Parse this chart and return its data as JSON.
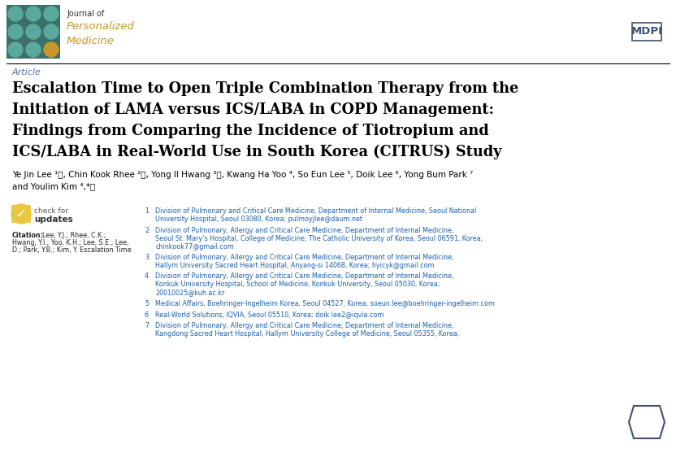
{
  "bg_color": "#ffffff",
  "header_bar_color": "#3a7068",
  "journal_name_line1": "Journal of",
  "journal_name_line2": "Personalized",
  "journal_name_line3": "Medicine",
  "journal_text_color": "#c8962a",
  "article_label": "Article",
  "title_line1": "Escalation Time to Open Triple Combination Therapy from the",
  "title_line2": "Initiation of LAMA versus ICS/LABA in COPD Management:",
  "title_line3": "Findings from Comparing the Incidence of Tiotropium and",
  "title_line4": "ICS/LABA in Real-World Use in South Korea (CITRUS) Study",
  "authors_line1": "Ye Jin Lee ¹ⓘ, Chin Kook Rhee ²ⓘ, Yong Il Hwang ³ⓘ, Kwang Ha Yoo ⁴, So Eun Lee ⁵, Doik Lee ⁶, Yong Bum Park ⁷",
  "authors_line2": "and Youlim Kim ⁴,*ⓘ",
  "aff1": "Division of Pulmonary and Critical Care Medicine, Department of Internal Medicine, Seoul National\nUniversity Hospital, Seoul 03080, Korea; pulmoyjlee@daum.net",
  "aff2": "Division of Pulmonary, Allergy and Critical Care Medicine, Department of Internal Medicine,\nSeoul St. Mary’s Hospital, College of Medicine, The Catholic University of Korea, Seoul 06591, Korea;\nchinkook77@gmail.com",
  "aff3": "Division of Pulmonary, Allergy and Critical Care Medicine, Department of Internal Medicine,\nHallym University Sacred Heart Hospital, Anyang-si 14068, Korea; hyicyk@gmail.com",
  "aff4": "Division of Pulmonary, Allergy and Critical Care Medicine, Department of Internal Medicine,\nKonkuk University Hospital, School of Medicine, Konkuk University, Seoul 05030, Korea;\n20010025@kuh.ac.kr",
  "aff5": "Medical Affairs, Boehringer-Ingelheim Korea, Seoul 04527, Korea; soeun.lee@boehringer-ingelheim.com",
  "aff6": "Real-World Solutions, IQVIA, Seoul 05510, Korea; doik.lee2@iqvia.com",
  "aff7": "Division of Pulmonary, Allergy and Critical Care Medicine, Department of Internal Medicine,\nKangdong Sacred Heart Hospital, Hallym University College of Medicine, Seoul 05355, Korea;",
  "affiliation_text_color": "#1a5fa8",
  "affiliation_number_color": "#1a5fa8",
  "title_color": "#000000",
  "author_color": "#000000",
  "citation_label": "Citation:",
  "citation_text_lines": [
    "Lee, Y.J.; Rhee, C.K.;",
    "Hwang, Y.I.; Yoo, K.H.; Lee, S.E.; Lee,",
    "D.; Park, Y.B.; Kim, Y. Escalation Time"
  ],
  "separator_color": "#000000",
  "mdpi_border_color": "#3d5272",
  "mdpi_text_color": "#3d5272",
  "check_color": "#f0a800",
  "check_text_color": "#555555",
  "circle_colors": [
    "#5ba89e",
    "#5ba89e",
    "#5ba89e",
    "#5ba89e",
    "#5ba89e",
    "#5ba89e",
    "#5ba89e",
    "#5ba89e",
    "#c8962a"
  ]
}
